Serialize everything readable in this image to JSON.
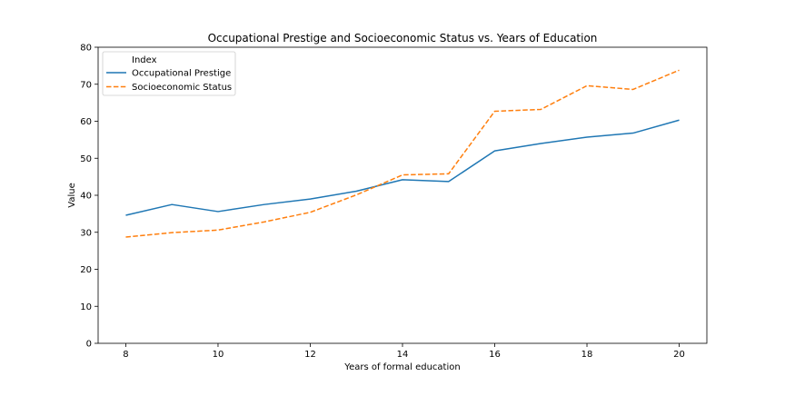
{
  "chart_data": {
    "type": "line",
    "title": "Occupational Prestige and Socioeconomic Status vs. Years of Education",
    "xlabel": "Years of formal education",
    "ylabel": "Value",
    "xlim": [
      7.4,
      20.6
    ],
    "ylim": [
      0,
      80
    ],
    "xticks": [
      8,
      10,
      12,
      14,
      16,
      18,
      20
    ],
    "yticks": [
      0,
      10,
      20,
      30,
      40,
      50,
      60,
      70,
      80
    ],
    "grid": false,
    "legend": {
      "title": "Index",
      "placement": "top-left"
    },
    "x": [
      8,
      9,
      10,
      11,
      12,
      13,
      14,
      15,
      16,
      17,
      18,
      19,
      20
    ],
    "series": [
      {
        "name": "Occupational Prestige",
        "color": "#1f77b4",
        "style": "solid",
        "values": [
          34.6,
          37.5,
          35.6,
          37.5,
          39.0,
          41.1,
          44.2,
          43.7,
          52.0,
          54.0,
          55.7,
          56.8,
          60.3
        ]
      },
      {
        "name": "Socioeconomic Status",
        "color": "#ff7f0e",
        "style": "dashed",
        "values": [
          28.7,
          29.9,
          30.6,
          32.8,
          35.4,
          40.1,
          45.5,
          45.8,
          62.7,
          63.2,
          69.6,
          68.6,
          73.8
        ]
      }
    ]
  }
}
